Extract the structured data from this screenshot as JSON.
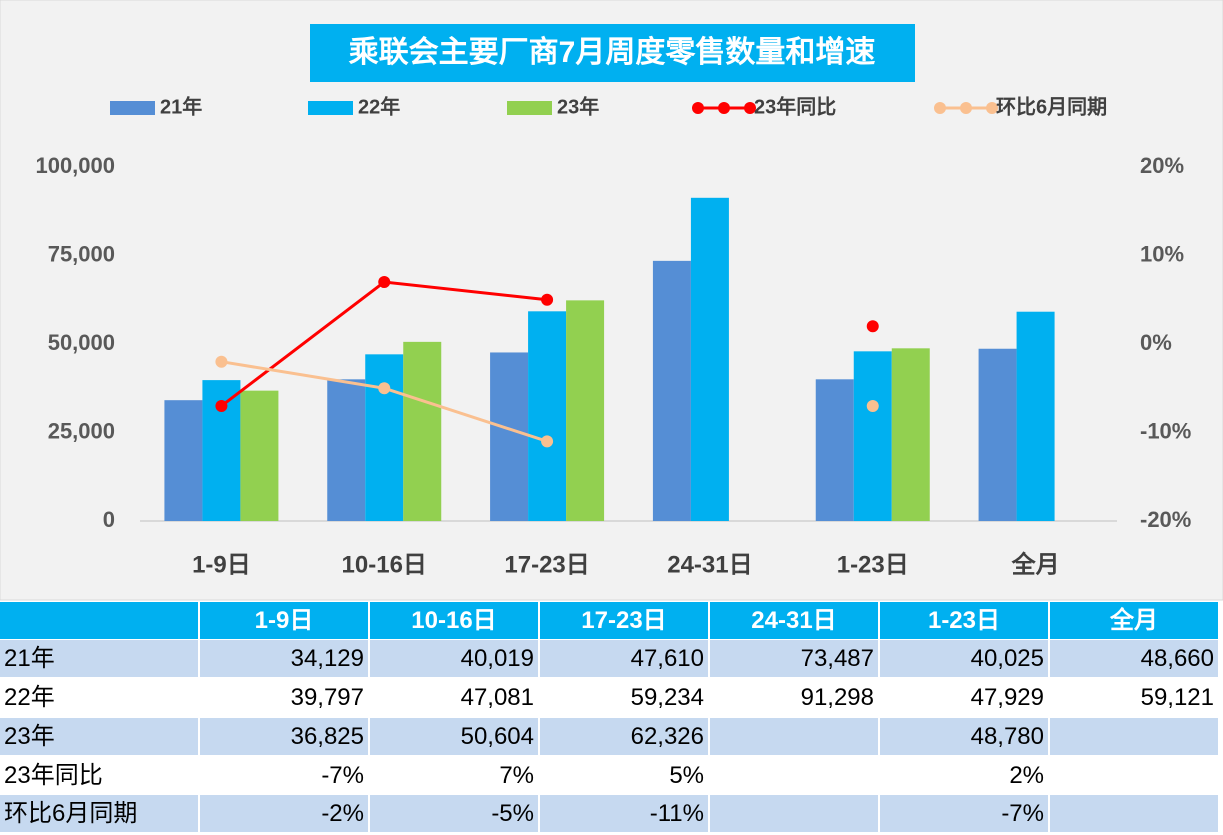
{
  "chart_data": {
    "type": "bar",
    "title": "乘联会主要厂商7月周度零售数量和增速",
    "categories": [
      "1-9日",
      "10-16日",
      "17-23日",
      "24-31日",
      "1-23日",
      "全月"
    ],
    "ylim": [
      0,
      100000
    ],
    "yticks": [
      0,
      {
        "value": 25000,
        "label": "25,000"
      },
      {
        "value": 50000,
        "label": "50,000"
      },
      {
        "value": 75000,
        "label": "75,000"
      },
      {
        "value": 100000,
        "label": "100,000"
      }
    ],
    "y2lim": [
      -20,
      20
    ],
    "y2ticks": [
      {
        "value": -20,
        "label": "-20%"
      },
      {
        "value": -10,
        "label": "-10%"
      },
      {
        "value": 0,
        "label": "0%"
      },
      {
        "value": 10,
        "label": "10%"
      },
      {
        "value": 20,
        "label": "20%"
      }
    ],
    "grid": false,
    "legend": "top",
    "series": [
      {
        "name": "21年",
        "type": "bar",
        "color": "#558ed5",
        "values": [
          34129,
          40019,
          47610,
          73487,
          40025,
          48660
        ],
        "value_labels": [
          "34,129",
          "40,019",
          "47,610",
          "73,487",
          "40,025",
          "48,660"
        ]
      },
      {
        "name": "22年",
        "type": "bar",
        "color": "#00b0f0",
        "values": [
          39797,
          47081,
          59234,
          91298,
          47929,
          59121
        ],
        "value_labels": [
          "39,797",
          "47,081",
          "59,234",
          "91,298",
          "47,929",
          "59,121"
        ]
      },
      {
        "name": "23年",
        "type": "bar",
        "color": "#92d050",
        "values": [
          36825,
          50604,
          62326,
          null,
          48780,
          null
        ],
        "value_labels": [
          "36,825",
          "50,604",
          "62,326",
          null,
          "48,780",
          null
        ]
      },
      {
        "name": "23年同比",
        "type": "line",
        "axis": "y2",
        "color": "#ff0000",
        "values": [
          -7,
          7,
          5,
          null,
          2,
          null
        ],
        "value_labels": [
          "-7%",
          "7%",
          "5%",
          null,
          "2%",
          null
        ]
      },
      {
        "name": "环比6月同期",
        "type": "line",
        "axis": "y2",
        "color": "#fac090",
        "values": [
          -2,
          -5,
          -11,
          null,
          -7,
          null
        ],
        "value_labels": [
          "-2%",
          "-5%",
          "-11%",
          null,
          "-7%",
          null
        ]
      }
    ]
  }
}
